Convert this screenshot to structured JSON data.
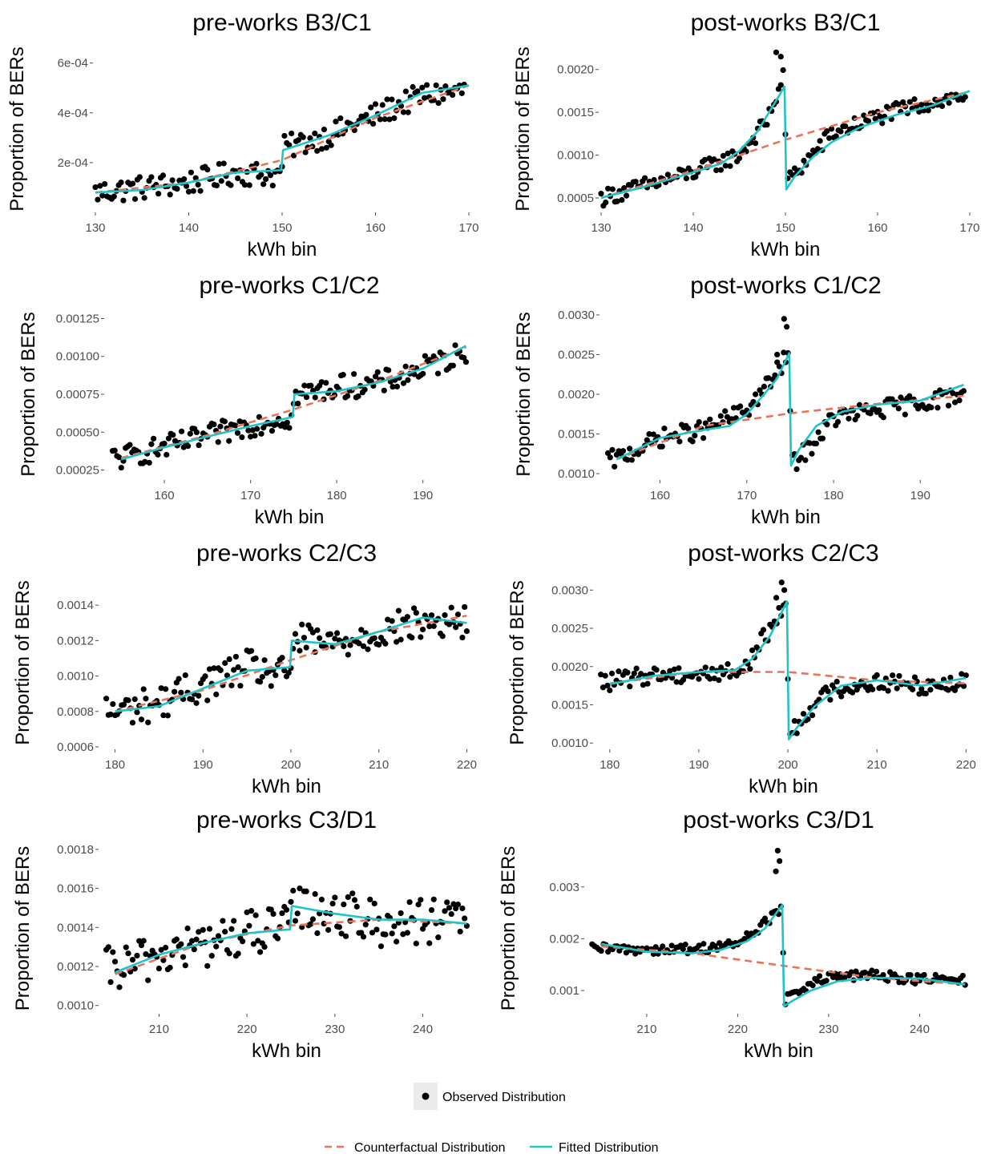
{
  "legend": {
    "observed": "Observed Distribution",
    "counterfactual": "Counterfactual Distribution",
    "fitted": "Fitted Distribution"
  },
  "colors": {
    "observed": "#000000",
    "counterfactual": "#e8735a",
    "fitted": "#1fc4c8",
    "tick_text": "#4d4d4d",
    "legend_key_bg": "#ebebeb"
  },
  "chart_data": [
    {
      "type": "scatter",
      "title": "pre-works B3/C1",
      "xlabel": "kWh bin",
      "ylabel": "Proportion of BERs",
      "xlim": [
        130,
        170
      ],
      "ylim": [
        1e-05,
        0.00066
      ],
      "xticks": [
        130,
        140,
        150,
        160,
        170
      ],
      "yticks": [
        0.0002,
        0.0004,
        0.0006
      ],
      "ytick_labels": [
        "2e-04",
        "4e-04",
        "6e-04"
      ],
      "grid": false,
      "threshold": 150,
      "observed_anchors": [
        [
          130,
          8e-05
        ],
        [
          135,
          0.0001
        ],
        [
          140,
          0.00012
        ],
        [
          145,
          0.00016
        ],
        [
          149.75,
          0.00015
        ],
        [
          150.25,
          0.00026
        ],
        [
          155,
          0.00031
        ],
        [
          160,
          0.00039
        ],
        [
          165,
          0.00047
        ],
        [
          170,
          0.00049
        ]
      ],
      "noise": 5e-05,
      "counterfactual": [
        [
          130,
          8e-05
        ],
        [
          140,
          0.00012
        ],
        [
          150,
          0.00021
        ],
        [
          160,
          0.00038
        ],
        [
          170,
          0.00051
        ]
      ],
      "fitted": [
        [
          130,
          8e-05
        ],
        [
          135,
          9e-05
        ],
        [
          140,
          0.00012
        ],
        [
          145,
          0.00016
        ],
        [
          149.9,
          0.00017
        ],
        [
          150.1,
          0.00025
        ],
        [
          155,
          0.00031
        ],
        [
          160,
          0.00039
        ],
        [
          165,
          0.00048
        ],
        [
          170,
          0.00051
        ]
      ]
    },
    {
      "type": "scatter",
      "title": "post-works B3/C1",
      "xlabel": "kWh bin",
      "ylabel": "Proportion of BERs",
      "xlim": [
        130,
        170
      ],
      "ylim": [
        0.00036,
        0.00225
      ],
      "xticks": [
        130,
        140,
        150,
        160,
        170
      ],
      "yticks": [
        0.0005,
        0.001,
        0.0015,
        0.002
      ],
      "ytick_labels": [
        "0.0005",
        "0.0010",
        "0.0015",
        "0.0020"
      ],
      "grid": false,
      "threshold": 150,
      "observed_anchors": [
        [
          130,
          0.0005
        ],
        [
          135,
          0.00065
        ],
        [
          140,
          0.0008
        ],
        [
          145,
          0.001
        ],
        [
          148,
          0.0014
        ],
        [
          149.75,
          0.0019
        ],
        [
          150.25,
          0.0007
        ],
        [
          152,
          0.0009
        ],
        [
          155,
          0.00125
        ],
        [
          160,
          0.00145
        ],
        [
          165,
          0.0016
        ],
        [
          170,
          0.0017
        ]
      ],
      "noise": 0.0001,
      "extra_points": [
        [
          149,
          0.0022
        ],
        [
          149.5,
          0.00215
        ]
      ],
      "counterfactual": [
        [
          130,
          0.0005
        ],
        [
          140,
          0.00082
        ],
        [
          150,
          0.00118
        ],
        [
          160,
          0.0015
        ],
        [
          170,
          0.00174
        ]
      ],
      "fitted": [
        [
          130,
          0.0005
        ],
        [
          135,
          0.00064
        ],
        [
          140,
          0.0008
        ],
        [
          143,
          0.0009
        ],
        [
          145,
          0.00105
        ],
        [
          147,
          0.00128
        ],
        [
          148.5,
          0.00155
        ],
        [
          149.9,
          0.0018
        ],
        [
          150.1,
          0.0006
        ],
        [
          151,
          0.00075
        ],
        [
          153,
          0.00098
        ],
        [
          155,
          0.00115
        ],
        [
          158,
          0.00132
        ],
        [
          162,
          0.00147
        ],
        [
          166,
          0.00158
        ],
        [
          170,
          0.00175
        ]
      ]
    },
    {
      "type": "scatter",
      "title": "pre-works C1/C2",
      "xlabel": "kWh bin",
      "ylabel": "Proportion of BERs",
      "xlim": [
        153.3,
        195.7
      ],
      "ylim": [
        0.0002,
        0.0013
      ],
      "xticks": [
        160,
        170,
        180,
        190
      ],
      "yticks": [
        0.00025,
        0.0005,
        0.00075,
        0.001,
        0.00125
      ],
      "ytick_labels": [
        "0.00025",
        "0.00050",
        "0.00075",
        "0.00100",
        "0.00125"
      ],
      "grid": false,
      "threshold": 175,
      "observed_anchors": [
        [
          155,
          0.00033
        ],
        [
          160,
          0.0004
        ],
        [
          165,
          0.00047
        ],
        [
          170,
          0.00055
        ],
        [
          174.75,
          0.0006
        ],
        [
          175.25,
          0.00074
        ],
        [
          180,
          0.0008
        ],
        [
          185,
          0.00082
        ],
        [
          190,
          0.00092
        ],
        [
          195,
          0.00103
        ]
      ],
      "noise": 8e-05,
      "counterfactual": [
        [
          155,
          0.00033
        ],
        [
          165,
          0.00048
        ],
        [
          175,
          0.00065
        ],
        [
          185,
          0.00084
        ],
        [
          195,
          0.00106
        ]
      ],
      "fitted": [
        [
          155,
          0.00032
        ],
        [
          160,
          0.0004
        ],
        [
          165,
          0.00047
        ],
        [
          170,
          0.00054
        ],
        [
          174.9,
          0.0006
        ],
        [
          175.1,
          0.00075
        ],
        [
          180,
          0.00077
        ],
        [
          185,
          0.00083
        ],
        [
          190,
          0.00092
        ],
        [
          195,
          0.00107
        ]
      ]
    },
    {
      "type": "scatter",
      "title": "post-works C1/C2",
      "xlabel": "kWh bin",
      "ylabel": "Proportion of BERs",
      "xlim": [
        153.3,
        195.7
      ],
      "ylim": [
        0.00095,
        0.00305
      ],
      "xticks": [
        160,
        170,
        180,
        190
      ],
      "yticks": [
        0.001,
        0.0015,
        0.002,
        0.0025,
        0.003
      ],
      "ytick_labels": [
        "0.0010",
        "0.0015",
        "0.0020",
        "0.0025",
        "0.0030"
      ],
      "grid": false,
      "threshold": 175,
      "observed_anchors": [
        [
          155,
          0.00118
        ],
        [
          160,
          0.00145
        ],
        [
          165,
          0.00155
        ],
        [
          170,
          0.0018
        ],
        [
          173,
          0.0022
        ],
        [
          174.75,
          0.0025
        ],
        [
          175.25,
          0.00112
        ],
        [
          177,
          0.0013
        ],
        [
          180,
          0.0017
        ],
        [
          185,
          0.0018
        ],
        [
          190,
          0.0019
        ],
        [
          195,
          0.002
        ]
      ],
      "noise": 0.00012,
      "extra_points": [
        [
          174.3,
          0.00295
        ],
        [
          174.6,
          0.00285
        ],
        [
          173.5,
          0.0025
        ]
      ],
      "counterfactual": [
        [
          155,
          0.00118
        ],
        [
          165,
          0.0016
        ],
        [
          175,
          0.00176
        ],
        [
          185,
          0.00188
        ],
        [
          195,
          0.00198
        ]
      ],
      "fitted": [
        [
          155,
          0.00118
        ],
        [
          160,
          0.00145
        ],
        [
          165,
          0.00155
        ],
        [
          168,
          0.0016
        ],
        [
          170,
          0.00175
        ],
        [
          172,
          0.002
        ],
        [
          173.5,
          0.0022
        ],
        [
          174.9,
          0.00252
        ],
        [
          175.1,
          0.0011
        ],
        [
          176,
          0.0013
        ],
        [
          178,
          0.0016
        ],
        [
          181,
          0.00178
        ],
        [
          185,
          0.00187
        ],
        [
          190,
          0.00192
        ],
        [
          195,
          0.00212
        ]
      ]
    },
    {
      "type": "scatter",
      "title": "pre-works C2/C3",
      "xlabel": "kWh bin",
      "ylabel": "Proportion of BERs",
      "xlim": [
        178.4,
        220.6
      ],
      "ylim": [
        0.0006,
        0.00155
      ],
      "xticks": [
        180,
        190,
        200,
        210,
        220
      ],
      "yticks": [
        0.0006,
        0.0008,
        0.001,
        0.0012,
        0.0014
      ],
      "ytick_labels": [
        "0.0006",
        "0.0008",
        "0.0010",
        "0.0012",
        "0.0014"
      ],
      "grid": false,
      "threshold": 200,
      "observed_anchors": [
        [
          180,
          0.0008
        ],
        [
          185,
          0.00085
        ],
        [
          190,
          0.00095
        ],
        [
          195,
          0.00105
        ],
        [
          199.75,
          0.001
        ],
        [
          200.25,
          0.0012
        ],
        [
          205,
          0.00118
        ],
        [
          210,
          0.00125
        ],
        [
          215,
          0.0013
        ],
        [
          220,
          0.0013
        ]
      ],
      "noise": 0.0001,
      "counterfactual": [
        [
          180,
          0.0008
        ],
        [
          190,
          0.00092
        ],
        [
          200,
          0.00109
        ],
        [
          210,
          0.00125
        ],
        [
          220,
          0.00134
        ]
      ],
      "fitted": [
        [
          180,
          0.0008
        ],
        [
          185,
          0.00083
        ],
        [
          190,
          0.00093
        ],
        [
          195,
          0.00103
        ],
        [
          199.9,
          0.00105
        ],
        [
          200.1,
          0.0012
        ],
        [
          205,
          0.00118
        ],
        [
          210,
          0.00125
        ],
        [
          215,
          0.00133
        ],
        [
          220,
          0.0013
        ]
      ]
    },
    {
      "type": "scatter",
      "title": "post-works C2/C3",
      "xlabel": "kWh bin",
      "ylabel": "Proportion of BERs",
      "xlim": [
        178.4,
        220.6
      ],
      "ylim": [
        0.00095,
        0.00315
      ],
      "xticks": [
        180,
        190,
        200,
        210,
        220
      ],
      "yticks": [
        0.001,
        0.0015,
        0.002,
        0.0025,
        0.003
      ],
      "ytick_labels": [
        "0.0010",
        "0.0015",
        "0.0020",
        "0.0025",
        "0.0030"
      ],
      "grid": false,
      "threshold": 200,
      "observed_anchors": [
        [
          180,
          0.0018
        ],
        [
          185,
          0.0019
        ],
        [
          190,
          0.0019
        ],
        [
          195,
          0.00195
        ],
        [
          198,
          0.0025
        ],
        [
          199.75,
          0.0028
        ],
        [
          200.25,
          0.0011
        ],
        [
          202,
          0.0014
        ],
        [
          205,
          0.0017
        ],
        [
          210,
          0.0018
        ],
        [
          215,
          0.00175
        ],
        [
          220,
          0.0018
        ]
      ],
      "noise": 0.00012,
      "extra_points": [
        [
          199.3,
          0.0031
        ],
        [
          199.6,
          0.003
        ],
        [
          198.7,
          0.0029
        ]
      ],
      "counterfactual": [
        [
          180,
          0.00178
        ],
        [
          190,
          0.00193
        ],
        [
          200,
          0.00193
        ],
        [
          210,
          0.00182
        ],
        [
          220,
          0.00178
        ]
      ],
      "fitted": [
        [
          180,
          0.00177
        ],
        [
          185,
          0.00188
        ],
        [
          190,
          0.00193
        ],
        [
          194,
          0.00195
        ],
        [
          196,
          0.0021
        ],
        [
          198,
          0.0024
        ],
        [
          199.9,
          0.00285
        ],
        [
          200.1,
          0.00105
        ],
        [
          201,
          0.0012
        ],
        [
          203,
          0.00148
        ],
        [
          206,
          0.00175
        ],
        [
          210,
          0.00182
        ],
        [
          215,
          0.00175
        ],
        [
          220,
          0.00185
        ]
      ]
    },
    {
      "type": "scatter",
      "title": "pre-works C3/D1",
      "xlabel": "kWh bin",
      "ylabel": "Proportion of BERs",
      "xlim": [
        203.4,
        245.6
      ],
      "ylim": [
        0.00097,
        0.00182
      ],
      "xticks": [
        210,
        220,
        230,
        240
      ],
      "yticks": [
        0.001,
        0.0012,
        0.0014,
        0.0016,
        0.0018
      ],
      "ytick_labels": [
        "0.0010",
        "0.0012",
        "0.0014",
        "0.0016",
        "0.0018"
      ],
      "grid": false,
      "threshold": 225,
      "observed_anchors": [
        [
          205,
          0.00118
        ],
        [
          210,
          0.00126
        ],
        [
          215,
          0.00131
        ],
        [
          220,
          0.00137
        ],
        [
          224.75,
          0.0014
        ],
        [
          225.25,
          0.0015
        ],
        [
          230,
          0.00148
        ],
        [
          235,
          0.00142
        ],
        [
          240,
          0.00143
        ],
        [
          245,
          0.00142
        ]
      ],
      "noise": 0.00012,
      "counterfactual": [
        [
          205,
          0.00116
        ],
        [
          215,
          0.00132
        ],
        [
          225,
          0.00141
        ],
        [
          235,
          0.00144
        ],
        [
          245,
          0.00142
        ]
      ],
      "fitted": [
        [
          205,
          0.00117
        ],
        [
          210,
          0.00126
        ],
        [
          215,
          0.00132
        ],
        [
          220,
          0.00137
        ],
        [
          224.9,
          0.00139
        ],
        [
          225.1,
          0.00151
        ],
        [
          230,
          0.00147
        ],
        [
          235,
          0.00144
        ],
        [
          240,
          0.00144
        ],
        [
          245,
          0.00142
        ]
      ]
    },
    {
      "type": "scatter",
      "title": "post-works C3/D1",
      "xlabel": "kWh bin",
      "ylabel": "Proportion of BERs",
      "xlim": [
        203.4,
        245.6
      ],
      "ylim": [
        0.0006,
        0.0038
      ],
      "xticks": [
        210,
        220,
        230,
        240
      ],
      "yticks": [
        0.001,
        0.002,
        0.003
      ],
      "ytick_labels": [
        "0.001",
        "0.002",
        "0.003"
      ],
      "grid": false,
      "threshold": 225,
      "observed_anchors": [
        [
          205,
          0.0018
        ],
        [
          210,
          0.0018
        ],
        [
          215,
          0.0018
        ],
        [
          220,
          0.0019
        ],
        [
          223,
          0.0023
        ],
        [
          224.75,
          0.0026
        ],
        [
          225.25,
          0.0008
        ],
        [
          227,
          0.00105
        ],
        [
          230,
          0.00125
        ],
        [
          235,
          0.0013
        ],
        [
          240,
          0.00122
        ],
        [
          245,
          0.0012
        ]
      ],
      "noise": 0.0001,
      "extra_points": [
        [
          224.4,
          0.0037
        ],
        [
          224.6,
          0.0035
        ],
        [
          224.2,
          0.0033
        ]
      ],
      "counterfactual": [
        [
          205,
          0.00185
        ],
        [
          215,
          0.00172
        ],
        [
          225,
          0.00148
        ],
        [
          235,
          0.00125
        ],
        [
          245,
          0.00112
        ]
      ],
      "fitted": [
        [
          205,
          0.0019
        ],
        [
          210,
          0.00175
        ],
        [
          215,
          0.00172
        ],
        [
          218,
          0.00178
        ],
        [
          221,
          0.00195
        ],
        [
          223,
          0.0022
        ],
        [
          224.9,
          0.00265
        ],
        [
          225.1,
          0.0007
        ],
        [
          226,
          0.0008
        ],
        [
          228,
          0.001
        ],
        [
          231,
          0.00118
        ],
        [
          235,
          0.00125
        ],
        [
          240,
          0.00123
        ],
        [
          245,
          0.00112
        ]
      ]
    }
  ]
}
